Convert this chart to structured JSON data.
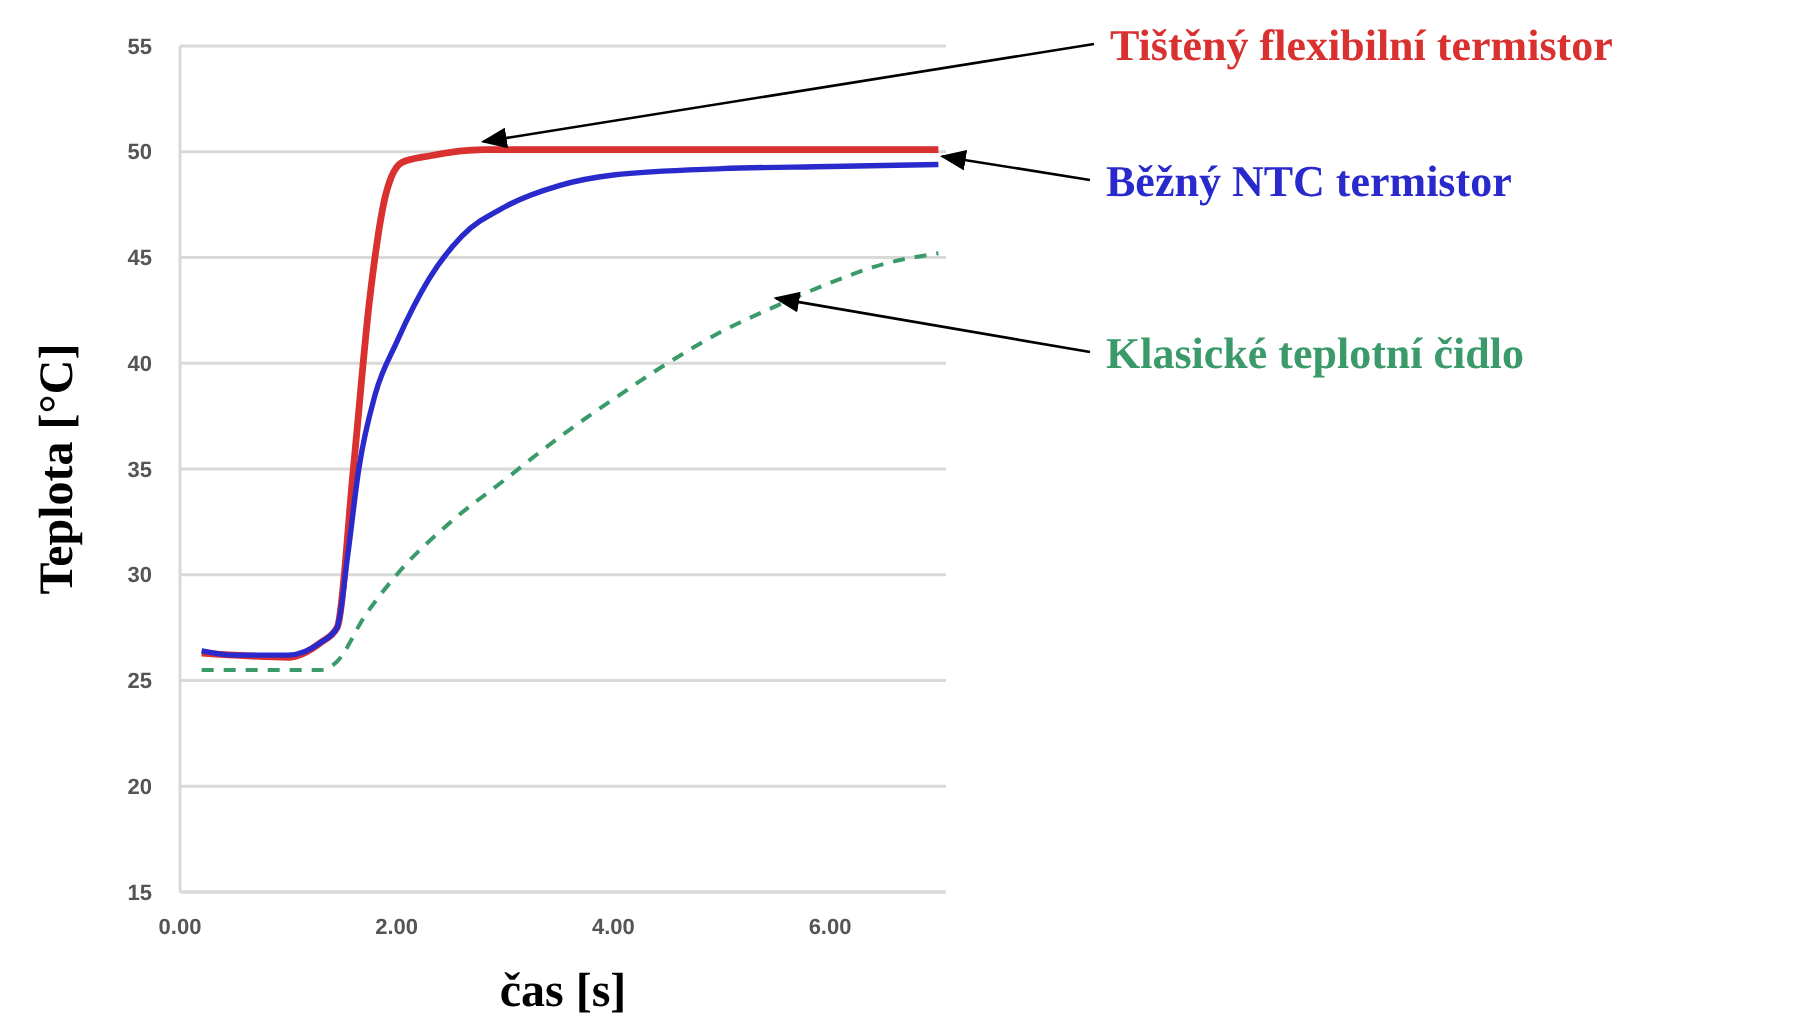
{
  "chart_data": {
    "type": "line",
    "xlabel": "čas [s]",
    "ylabel": "Teplota [°C]",
    "xlim": [
      0,
      7.07
    ],
    "xticks": [
      {
        "value": 0,
        "label": "0.00"
      },
      {
        "value": 2,
        "label": "2.00"
      },
      {
        "value": 4,
        "label": "4.00"
      },
      {
        "value": 6,
        "label": "6.00"
      }
    ],
    "ylim": [
      15,
      55
    ],
    "yticks": [
      15,
      20,
      25,
      30,
      35,
      40,
      45,
      50,
      55
    ],
    "grid": "y",
    "marker": "none",
    "series": [
      {
        "name": "Tištěný flexibilní termistor",
        "color": "#d93030",
        "line_style": "solid",
        "x": [
          0.2,
          0.5,
          1.0,
          1.3,
          1.45,
          1.6,
          1.75,
          1.9,
          2.05,
          2.3,
          2.8,
          4,
          5.5,
          7
        ],
        "values": [
          26.3,
          26.2,
          26.1,
          26.8,
          27.5,
          35,
          43,
          48,
          49.5,
          49.8,
          50.1,
          50.1,
          50.1,
          50.1
        ]
      },
      {
        "name": "Běžný NTC termistor",
        "color": "#2a2acc",
        "line_style": "solid",
        "x": [
          0.2,
          0.5,
          1.0,
          1.3,
          1.45,
          1.55,
          1.65,
          1.8,
          2.0,
          2.3,
          2.6,
          3.0,
          3.5,
          4.0,
          5,
          6,
          7
        ],
        "values": [
          26.4,
          26.2,
          26.2,
          26.8,
          27.5,
          31,
          35,
          38.5,
          41,
          44,
          46,
          47.4,
          48.4,
          48.9,
          49.2,
          49.3,
          49.4
        ]
      },
      {
        "name": "Klasické teplotní čidlo",
        "color": "#3a9a6a",
        "line_style": "dashed",
        "x": [
          0.2,
          1.3,
          1.45,
          1.7,
          2.0,
          2.5,
          3.0,
          3.5,
          4.0,
          4.5,
          5.0,
          5.5,
          6.0,
          6.5,
          7.0
        ],
        "values": [
          25.5,
          25.5,
          25.9,
          28,
          30,
          32.5,
          34.5,
          36.5,
          38.3,
          40,
          41.5,
          42.7,
          43.8,
          44.7,
          45.2
        ]
      }
    ]
  }
}
